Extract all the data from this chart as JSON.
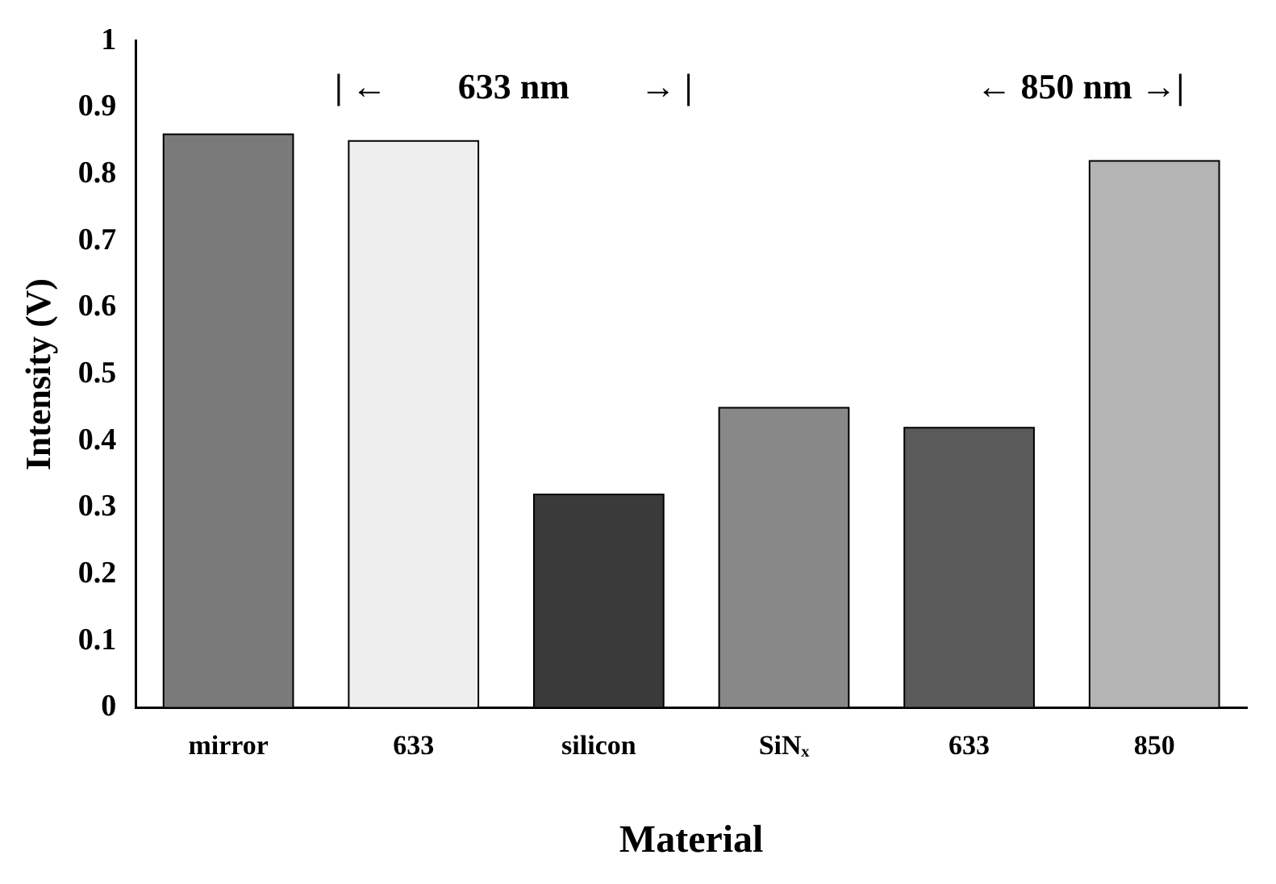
{
  "chart_data": {
    "type": "bar",
    "xlabel": "Material",
    "ylabel": "Intensity (V)",
    "categories": [
      "mirror",
      "633",
      "silicon",
      "SiNₓ",
      "633",
      "850"
    ],
    "values": [
      0.86,
      0.85,
      0.32,
      0.45,
      0.42,
      0.82
    ],
    "colors": [
      "#7a7a7a",
      "#eeeeee",
      "#3a3a3a",
      "#888888",
      "#5a5a5a",
      "#b4b4b4"
    ],
    "ylim": [
      0,
      1
    ],
    "yticks": [
      0,
      0.1,
      0.2,
      0.3,
      0.4,
      0.5,
      0.6,
      0.7,
      0.8,
      0.9,
      1
    ],
    "grid": false,
    "legend": false,
    "annotations": [
      "| ←        633 nm        → |",
      "← 850 nm →|"
    ]
  }
}
